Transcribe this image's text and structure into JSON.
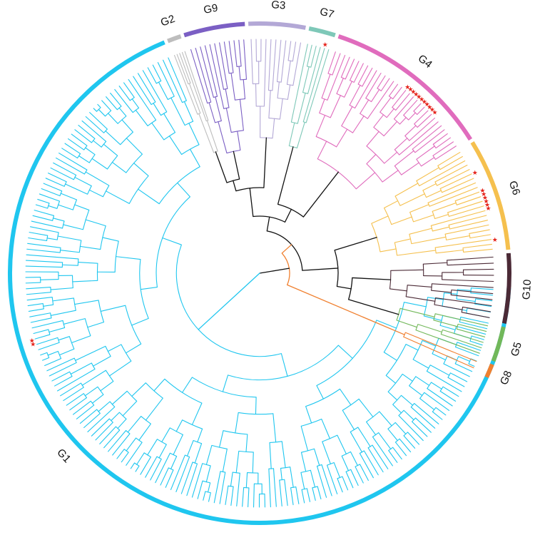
{
  "groups": [
    {
      "id": "G1",
      "label": "G1",
      "color": "#1fc6ef",
      "start_deg": 3,
      "end_deg": 248,
      "leaves": 176
    },
    {
      "id": "G2",
      "label": "G2",
      "color": "#bdbdbd",
      "start_deg": 248,
      "end_deg": 252,
      "leaves": 5
    },
    {
      "id": "G9",
      "label": "G9",
      "color": "#7b5fc4",
      "start_deg": 252,
      "end_deg": 267,
      "leaves": 12
    },
    {
      "id": "G3",
      "label": "G3",
      "color": "#b3a8d6",
      "start_deg": 267,
      "end_deg": 281,
      "leaves": 11
    },
    {
      "id": "G7",
      "label": "G7",
      "color": "#7ec8b8",
      "start_deg": 281,
      "end_deg": 288,
      "leaves": 6
    },
    {
      "id": "G4",
      "label": "G4",
      "color": "#e06cbd",
      "start_deg": 288,
      "end_deg": 328,
      "leaves": 32
    },
    {
      "id": "G6",
      "label": "G6",
      "color": "#f5c04e",
      "start_deg": 328,
      "end_deg": 355,
      "leaves": 22
    },
    {
      "id": "G10",
      "label": "G10",
      "color": "#4b2a36",
      "start_deg": 355,
      "end_deg": 372,
      "leaves": 11
    },
    {
      "id": "G5",
      "label": "G5",
      "color": "#72b85a",
      "start_deg": 372,
      "end_deg": 381,
      "leaves": 6
    },
    {
      "id": "G8",
      "label": "G8",
      "color": "#f08030",
      "start_deg": 381,
      "end_deg": 385,
      "leaves": 2
    }
  ],
  "marker_symbol": "★",
  "marker_color": "#e5231b",
  "markers": [
    {
      "group": "G7",
      "deg": 286,
      "count": 1
    },
    {
      "group": "G4",
      "deg": 313,
      "count": 11
    },
    {
      "group": "G6",
      "deg": 335,
      "count": 1
    },
    {
      "group": "G6",
      "deg": 342,
      "count": 6
    },
    {
      "group": "G6",
      "deg": 352,
      "count": 1
    },
    {
      "group": "G1",
      "deg": 163,
      "count": 2
    }
  ]
}
